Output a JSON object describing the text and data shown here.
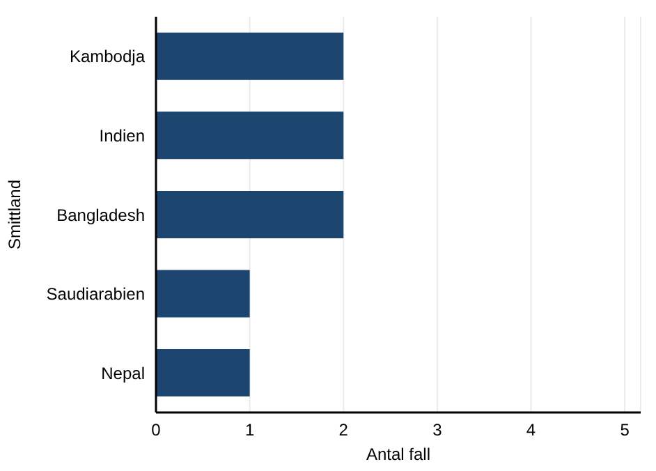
{
  "chart_data": {
    "type": "bar",
    "orientation": "horizontal",
    "xlabel": "Antal fall",
    "ylabel": "Smittland",
    "categories": [
      "Kambodja",
      "Indien",
      "Bangladesh",
      "Saudiarabien",
      "Nepal"
    ],
    "values": [
      2,
      2,
      2,
      1,
      1
    ],
    "color": "#1c4670",
    "xlim": [
      0,
      5.17
    ],
    "xticks": [
      0,
      1,
      2,
      3,
      4,
      5
    ],
    "grid": "x"
  }
}
